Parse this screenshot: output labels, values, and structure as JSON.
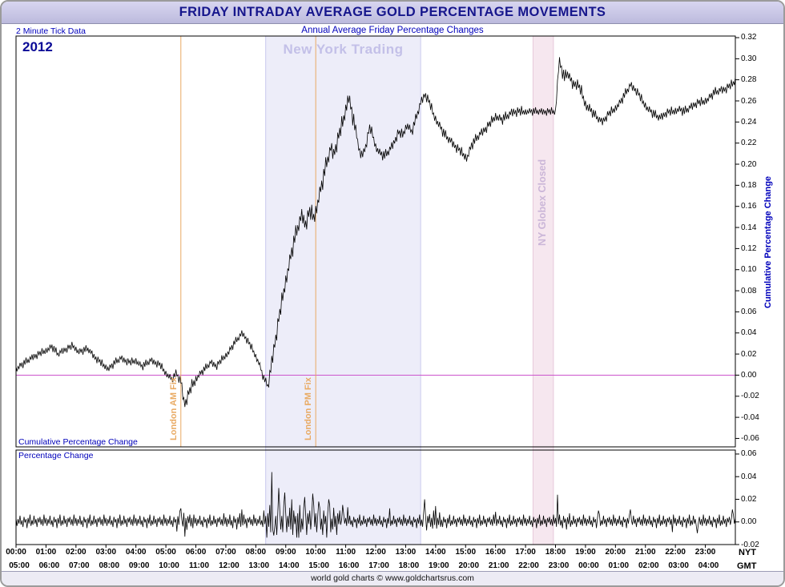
{
  "header": {
    "title": "FRIDAY INTRADAY AVERAGE GOLD PERCENTAGE MOVEMENTS",
    "left_note": "2 Minute Tick Data",
    "subtitle": "Annual Average Friday Percentage Changes"
  },
  "labels": {
    "year": "2012",
    "watermark": "New York Trading",
    "am_fix": "London AM Fix",
    "pm_fix": "London PM Fix",
    "globex": "NY Globex Closed",
    "main_panel": "Cumulative Percentage Change",
    "lower_panel": "Percentage Change",
    "right_axis_title": "Cumulative Percentage Change",
    "nyt": "NYT",
    "gmt": "GMT"
  },
  "footer": {
    "credit": "world gold charts © www.goldchartsrus.com"
  },
  "colors": {
    "header_bg": "#c9c7e6",
    "title_text": "#16168c",
    "blue_label": "#0000bb",
    "fix_line": "#e9aa63",
    "zero_line": "#cc55cc",
    "ny_band_fill": "#ededf9",
    "ny_band_border": "#c9c9ee",
    "globex_fill": "#f6e7ef",
    "globex_border": "#e7c9da",
    "watermark_text": "#c3c0e8",
    "globex_text": "#cbb6d8",
    "line": "#000000"
  },
  "axes": {
    "main_yticks": [
      "0.32",
      "0.30",
      "0.28",
      "0.26",
      "0.24",
      "0.22",
      "0.20",
      "0.18",
      "0.16",
      "0.14",
      "0.12",
      "0.10",
      "0.08",
      "0.06",
      "0.04",
      "0.02",
      "0.00",
      "-0.02",
      "-0.04",
      "-0.06"
    ],
    "lower_yticks": [
      "0.06",
      "0.04",
      "0.02",
      "0.00",
      "-0.02"
    ],
    "nyt_times": [
      "00:00",
      "01:00",
      "02:00",
      "03:00",
      "04:00",
      "05:00",
      "06:00",
      "07:00",
      "08:00",
      "09:00",
      "10:00",
      "11:00",
      "12:00",
      "13:00",
      "14:00",
      "15:00",
      "16:00",
      "17:00",
      "18:00",
      "19:00",
      "20:00",
      "21:00",
      "22:00",
      "23:00"
    ],
    "gmt_times": [
      "05:00",
      "06:00",
      "07:00",
      "08:00",
      "09:00",
      "10:00",
      "11:00",
      "12:00",
      "13:00",
      "14:00",
      "15:00",
      "16:00",
      "17:00",
      "18:00",
      "19:00",
      "20:00",
      "21:00",
      "22:00",
      "23:00",
      "00:00",
      "01:00",
      "02:00",
      "03:00",
      "04:00"
    ]
  },
  "chart_data": [
    {
      "type": "line",
      "name": "cumulative_percentage_change",
      "title": "FRIDAY INTRADAY AVERAGE GOLD PERCENTAGE MOVEMENTS",
      "subtitle": "Annual Average Friday Percentage Changes",
      "year": "2012",
      "ylabel": "Cumulative Percentage Change",
      "x_unit": "hours_nyt",
      "xlim": [
        0,
        24
      ],
      "ylim": [
        -0.068,
        0.3215
      ],
      "zero_line": 0.0,
      "grid": false,
      "regions": [
        {
          "label": "New York Trading",
          "from": 8.33,
          "to": 13.5
        },
        {
          "label": "NY Globex Closed",
          "from": 17.25,
          "to": 17.93
        }
      ],
      "events": [
        {
          "label": "London AM Fix",
          "at": 5.5
        },
        {
          "label": "London PM Fix",
          "at": 10.0
        }
      ],
      "step_hours": 0.0333333,
      "anchors": [
        [
          0,
          0.006
        ],
        [
          0.3,
          0.012
        ],
        [
          0.6,
          0.018
        ],
        [
          0.9,
          0.022
        ],
        [
          1.2,
          0.027
        ],
        [
          1.4,
          0.02
        ],
        [
          1.6,
          0.024
        ],
        [
          1.9,
          0.028
        ],
        [
          2.1,
          0.022
        ],
        [
          2.4,
          0.025
        ],
        [
          2.6,
          0.018
        ],
        [
          2.9,
          0.01
        ],
        [
          3.1,
          0.006
        ],
        [
          3.3,
          0.012
        ],
        [
          3.5,
          0.016
        ],
        [
          3.8,
          0.012
        ],
        [
          4.0,
          0.014
        ],
        [
          4.2,
          0.008
        ],
        [
          4.5,
          0.014
        ],
        [
          4.8,
          0.01
        ],
        [
          5.0,
          0.002
        ],
        [
          5.2,
          -0.004
        ],
        [
          5.35,
          0.002
        ],
        [
          5.5,
          -0.006
        ],
        [
          5.62,
          -0.028
        ],
        [
          5.75,
          -0.018
        ],
        [
          5.9,
          -0.008
        ],
        [
          6.1,
          0.0
        ],
        [
          6.3,
          0.006
        ],
        [
          6.5,
          0.012
        ],
        [
          6.7,
          0.009
        ],
        [
          6.9,
          0.016
        ],
        [
          7.1,
          0.022
        ],
        [
          7.3,
          0.031
        ],
        [
          7.55,
          0.04
        ],
        [
          7.7,
          0.034
        ],
        [
          7.9,
          0.024
        ],
        [
          8.1,
          0.012
        ],
        [
          8.25,
          -0.002
        ],
        [
          8.4,
          -0.01
        ],
        [
          8.5,
          0.005
        ],
        [
          8.6,
          0.025
        ],
        [
          8.75,
          0.05
        ],
        [
          8.9,
          0.075
        ],
        [
          9.0,
          0.09
        ],
        [
          9.15,
          0.11
        ],
        [
          9.3,
          0.13
        ],
        [
          9.45,
          0.145
        ],
        [
          9.55,
          0.152
        ],
        [
          9.65,
          0.143
        ],
        [
          9.8,
          0.155
        ],
        [
          9.95,
          0.15
        ],
        [
          10.05,
          0.162
        ],
        [
          10.2,
          0.18
        ],
        [
          10.35,
          0.2
        ],
        [
          10.5,
          0.215
        ],
        [
          10.6,
          0.21
        ],
        [
          10.75,
          0.225
        ],
        [
          10.9,
          0.24
        ],
        [
          11.0,
          0.252
        ],
        [
          11.08,
          0.265
        ],
        [
          11.2,
          0.25
        ],
        [
          11.35,
          0.23
        ],
        [
          11.5,
          0.207
        ],
        [
          11.65,
          0.215
        ],
        [
          11.8,
          0.235
        ],
        [
          11.9,
          0.228
        ],
        [
          12.0,
          0.217
        ],
        [
          12.15,
          0.21
        ],
        [
          12.3,
          0.208
        ],
        [
          12.45,
          0.213
        ],
        [
          12.6,
          0.22
        ],
        [
          12.75,
          0.23
        ],
        [
          12.9,
          0.228
        ],
        [
          13.05,
          0.238
        ],
        [
          13.2,
          0.23
        ],
        [
          13.35,
          0.244
        ],
        [
          13.5,
          0.258
        ],
        [
          13.65,
          0.267
        ],
        [
          13.8,
          0.258
        ],
        [
          13.95,
          0.246
        ],
        [
          14.1,
          0.238
        ],
        [
          14.3,
          0.228
        ],
        [
          14.5,
          0.222
        ],
        [
          14.7,
          0.216
        ],
        [
          14.9,
          0.21
        ],
        [
          15.05,
          0.206
        ],
        [
          15.2,
          0.218
        ],
        [
          15.4,
          0.226
        ],
        [
          15.6,
          0.232
        ],
        [
          15.8,
          0.238
        ],
        [
          16.0,
          0.246
        ],
        [
          16.2,
          0.242
        ],
        [
          16.4,
          0.246
        ],
        [
          16.6,
          0.25
        ],
        [
          16.9,
          0.25
        ],
        [
          18.0,
          0.25
        ],
        [
          18.05,
          0.272
        ],
        [
          18.12,
          0.298
        ],
        [
          18.2,
          0.29
        ],
        [
          18.3,
          0.282
        ],
        [
          18.42,
          0.287
        ],
        [
          18.55,
          0.276
        ],
        [
          18.7,
          0.277
        ],
        [
          18.85,
          0.27
        ],
        [
          19.0,
          0.257
        ],
        [
          19.2,
          0.25
        ],
        [
          19.4,
          0.244
        ],
        [
          19.55,
          0.24
        ],
        [
          19.75,
          0.247
        ],
        [
          19.95,
          0.252
        ],
        [
          20.15,
          0.258
        ],
        [
          20.35,
          0.268
        ],
        [
          20.5,
          0.275
        ],
        [
          20.7,
          0.27
        ],
        [
          20.9,
          0.26
        ],
        [
          21.1,
          0.252
        ],
        [
          21.3,
          0.247
        ],
        [
          21.5,
          0.244
        ],
        [
          21.7,
          0.249
        ],
        [
          21.9,
          0.25
        ],
        [
          22.1,
          0.252
        ],
        [
          22.3,
          0.25
        ],
        [
          22.5,
          0.254
        ],
        [
          22.7,
          0.258
        ],
        [
          22.9,
          0.259
        ],
        [
          23.1,
          0.262
        ],
        [
          23.3,
          0.268
        ],
        [
          23.5,
          0.27
        ],
        [
          23.7,
          0.272
        ],
        [
          23.9,
          0.276
        ],
        [
          24,
          0.28
        ]
      ],
      "jitter": [
        0.002,
        -0.003,
        0.001,
        -0.002,
        0.003,
        -0.001,
        0.002,
        -0.004,
        0.003,
        -0.002,
        0.004,
        -0.002,
        0.001,
        -0.003,
        0.002,
        -0.001,
        0.003,
        -0.003,
        0.002,
        -0.002,
        0.001,
        -0.004,
        0.003,
        -0.001,
        0.002,
        -0.003,
        0.004,
        -0.002,
        0.001,
        -0.003
      ],
      "amp_regions": [
        {
          "from": 8.4,
          "to": 11.3,
          "scale": 2.2
        },
        {
          "from": 5.4,
          "to": 6.0,
          "scale": 1.6
        },
        {
          "from": 11.3,
          "to": 16.9,
          "scale": 1.3
        },
        {
          "from": 18.0,
          "to": 19.2,
          "scale": 1.6
        },
        {
          "from": 19.2,
          "to": 24,
          "scale": 1.2
        }
      ],
      "flat_ranges": [
        [
          16.9,
          18.0
        ]
      ],
      "spikes": []
    },
    {
      "type": "line",
      "name": "percentage_change",
      "ylabel": "Percentage Change",
      "x_unit": "hours_nyt",
      "xlim": [
        0,
        24
      ],
      "ylim": [
        -0.02,
        0.0635
      ],
      "grid": false,
      "step_hours": 0.0333333,
      "anchors": [
        [
          0,
          0.0005
        ],
        [
          24,
          0.0005
        ]
      ],
      "jitter": [
        0.003,
        -0.004,
        0.002,
        -0.002,
        0.005,
        -0.003,
        0.001,
        -0.005,
        0.004,
        -0.001,
        0.002,
        -0.006,
        0.003,
        -0.002,
        0.006,
        -0.004,
        0.001,
        -0.003,
        0.005,
        -0.002,
        0.002,
        -0.005,
        0.003,
        -0.001,
        0.004,
        -0.003,
        0.002,
        -0.004,
        0.006,
        -0.002
      ],
      "amp_regions": [
        {
          "from": 8.25,
          "to": 10.8,
          "scale": 2.4
        },
        {
          "from": 5.35,
          "to": 5.9,
          "scale": 1.5
        },
        {
          "from": 6.9,
          "to": 7.7,
          "scale": 1.2
        },
        {
          "from": 13.5,
          "to": 14.2,
          "scale": 1.6
        },
        {
          "from": 18.0,
          "to": 18.5,
          "scale": 1.2
        }
      ],
      "flat_ranges": [
        [
          17.2,
          18.0
        ]
      ],
      "spikes": [
        [
          8.53,
          0.044
        ],
        [
          8.6,
          -0.012
        ],
        [
          8.77,
          0.03
        ],
        [
          8.97,
          0.026
        ],
        [
          9.2,
          0.02
        ],
        [
          9.43,
          -0.014
        ],
        [
          9.63,
          0.022
        ],
        [
          9.9,
          0.025
        ],
        [
          10.1,
          0.018
        ],
        [
          10.43,
          0.02
        ],
        [
          10.9,
          0.015
        ],
        [
          11.07,
          0.013
        ],
        [
          12.47,
          0.012
        ],
        [
          13.63,
          0.02
        ],
        [
          14.0,
          0.014
        ],
        [
          18.07,
          0.024
        ],
        [
          5.63,
          -0.013
        ],
        [
          5.5,
          0.012
        ],
        [
          7.53,
          0.011
        ],
        [
          16.0,
          0.009
        ],
        [
          19.43,
          0.01
        ],
        [
          20.5,
          0.011
        ],
        [
          21.9,
          -0.009
        ],
        [
          22.73,
          -0.01
        ],
        [
          23.9,
          0.011
        ]
      ]
    }
  ]
}
